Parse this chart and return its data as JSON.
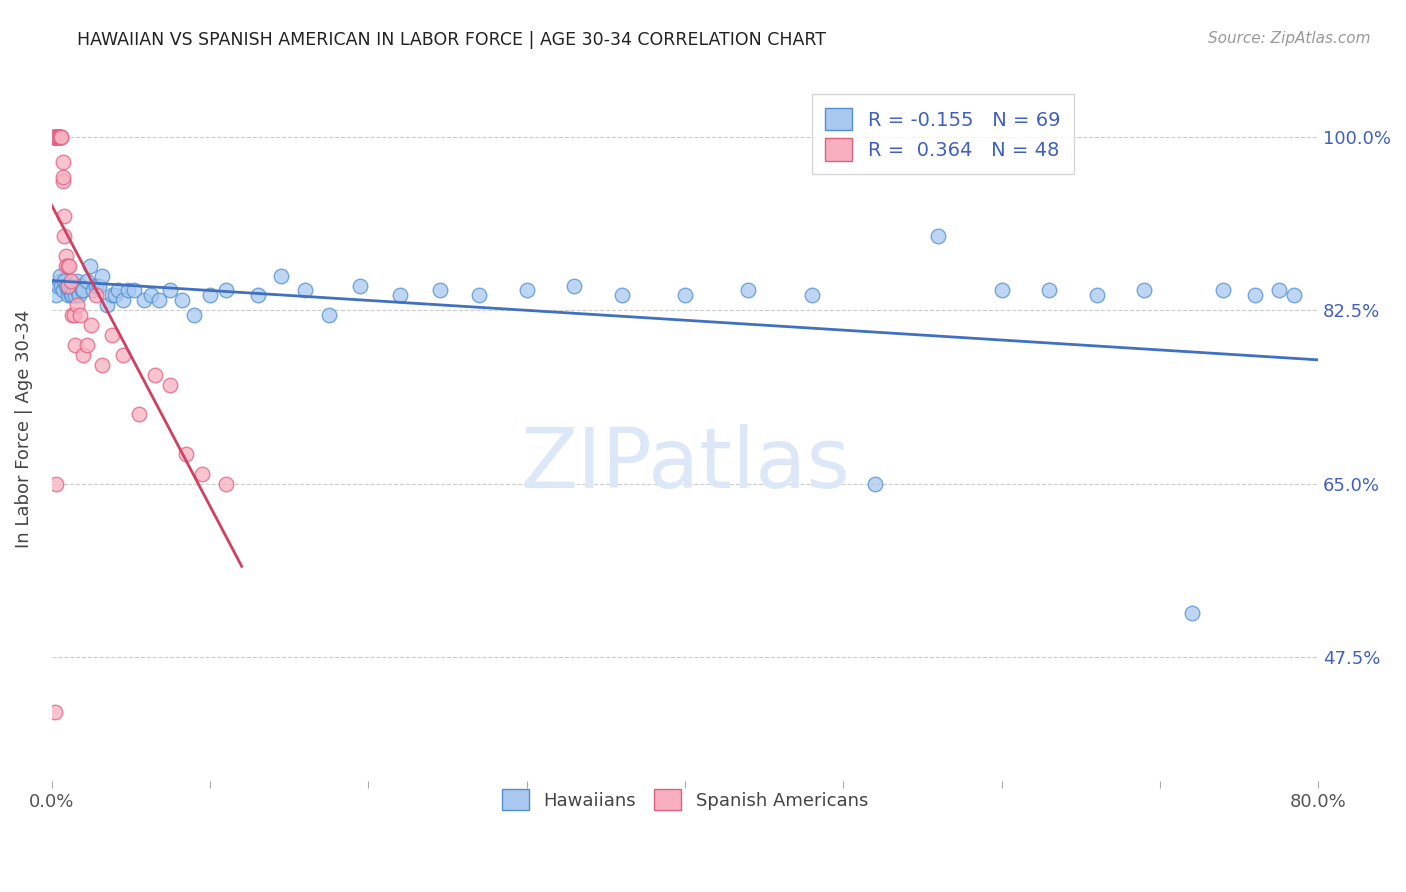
{
  "title": "HAWAIIAN VS SPANISH AMERICAN IN LABOR FORCE | AGE 30-34 CORRELATION CHART",
  "source": "Source: ZipAtlas.com",
  "ylabel": "In Labor Force | Age 30-34",
  "ytick_labels": [
    "100.0%",
    "82.5%",
    "65.0%",
    "47.5%"
  ],
  "ytick_values": [
    1.0,
    0.825,
    0.65,
    0.475
  ],
  "xlim": [
    0.0,
    0.8
  ],
  "ylim": [
    0.35,
    1.06
  ],
  "hawaiians_R": "-0.155",
  "hawaiians_N": "69",
  "spanish_R": "0.364",
  "spanish_N": "48",
  "hawaiian_color": "#a8c8f0",
  "hawaiian_edge": "#5090d0",
  "spanish_color": "#f8b0c0",
  "spanish_edge": "#e06080",
  "trendline_hawaiian_color": "#4070c0",
  "trendline_spanish_color": "#d04060",
  "watermark_color": "#dce8f8",
  "legend_text_color": "#4060c0",
  "hawaiians_x": [
    0.003,
    0.004,
    0.005,
    0.005,
    0.006,
    0.007,
    0.008,
    0.009,
    0.01,
    0.01,
    0.011,
    0.012,
    0.012,
    0.013,
    0.014,
    0.015,
    0.015,
    0.016,
    0.016,
    0.017,
    0.018,
    0.019,
    0.02,
    0.022,
    0.024,
    0.026,
    0.028,
    0.03,
    0.032,
    0.035,
    0.038,
    0.04,
    0.042,
    0.045,
    0.048,
    0.052,
    0.058,
    0.063,
    0.068,
    0.075,
    0.082,
    0.09,
    0.1,
    0.11,
    0.13,
    0.145,
    0.16,
    0.175,
    0.195,
    0.22,
    0.245,
    0.27,
    0.3,
    0.33,
    0.36,
    0.4,
    0.44,
    0.48,
    0.52,
    0.56,
    0.6,
    0.63,
    0.66,
    0.69,
    0.72,
    0.74,
    0.76,
    0.775,
    0.785
  ],
  "hawaiians_y": [
    0.84,
    0.85,
    0.855,
    0.86,
    0.85,
    0.845,
    0.855,
    0.85,
    0.84,
    0.85,
    0.845,
    0.84,
    0.85,
    0.84,
    0.845,
    0.85,
    0.84,
    0.845,
    0.855,
    0.84,
    0.85,
    0.845,
    0.845,
    0.855,
    0.87,
    0.845,
    0.85,
    0.85,
    0.86,
    0.83,
    0.84,
    0.84,
    0.845,
    0.835,
    0.845,
    0.845,
    0.835,
    0.84,
    0.835,
    0.845,
    0.835,
    0.82,
    0.84,
    0.845,
    0.84,
    0.86,
    0.845,
    0.82,
    0.85,
    0.84,
    0.845,
    0.84,
    0.845,
    0.85,
    0.84,
    0.84,
    0.845,
    0.84,
    0.65,
    0.9,
    0.845,
    0.845,
    0.84,
    0.845,
    0.52,
    0.845,
    0.84,
    0.845,
    0.84
  ],
  "spanish_x": [
    0.001,
    0.001,
    0.002,
    0.002,
    0.002,
    0.003,
    0.003,
    0.003,
    0.004,
    0.004,
    0.004,
    0.005,
    0.005,
    0.005,
    0.005,
    0.006,
    0.006,
    0.007,
    0.007,
    0.007,
    0.008,
    0.008,
    0.009,
    0.009,
    0.01,
    0.01,
    0.011,
    0.012,
    0.013,
    0.014,
    0.015,
    0.016,
    0.018,
    0.02,
    0.022,
    0.025,
    0.028,
    0.032,
    0.038,
    0.045,
    0.055,
    0.065,
    0.075,
    0.085,
    0.095,
    0.11,
    0.003,
    0.002
  ],
  "spanish_y": [
    1.0,
    1.0,
    1.0,
    1.0,
    1.0,
    1.0,
    1.0,
    1.0,
    1.0,
    1.0,
    1.0,
    1.0,
    1.0,
    1.0,
    1.0,
    1.0,
    1.0,
    0.975,
    0.955,
    0.96,
    0.9,
    0.92,
    0.88,
    0.87,
    0.87,
    0.85,
    0.87,
    0.855,
    0.82,
    0.82,
    0.79,
    0.83,
    0.82,
    0.78,
    0.79,
    0.81,
    0.84,
    0.77,
    0.8,
    0.78,
    0.72,
    0.76,
    0.75,
    0.68,
    0.66,
    0.65,
    0.65,
    0.42
  ]
}
